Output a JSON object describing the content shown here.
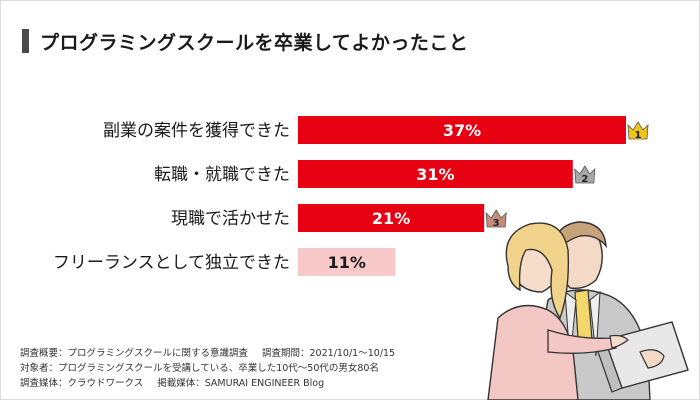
{
  "title": "プログラミングスクールを卒業してよかったこと",
  "chart_data": {
    "type": "bar",
    "orientation": "horizontal",
    "categories": [
      "副業の案件を獲得できた",
      "転職・就職できた",
      "現職で活かせた",
      "フリーランスとして独立できた"
    ],
    "values": [
      37,
      31,
      21,
      11
    ],
    "value_suffix": "%",
    "xlim": [
      0,
      37
    ],
    "ranks": [
      "1",
      "2",
      "3",
      ""
    ],
    "colors": {
      "bar_main": "#e60012",
      "bar_muted": "#f7c9c9",
      "label_on_main": "#ffffff",
      "label_on_muted": "#1a1a1a",
      "crown_gold": "#f0c419",
      "crown_silver": "#a8a8a8",
      "crown_bronze": "#c48c79"
    },
    "grid": false,
    "legend": "none"
  },
  "footer": {
    "survey_overview": "調査概要：プログラミングスクールに関する意識調査",
    "survey_period": "調査期間：2021/10/1〜10/15",
    "target": "対象者：プログラミングスクールを受講している、卒業した10代〜50代の男女80名",
    "medium": "調査媒体：クラウドワークス",
    "publication": "掲載媒体：SAMURAI ENGINEER Blog"
  }
}
